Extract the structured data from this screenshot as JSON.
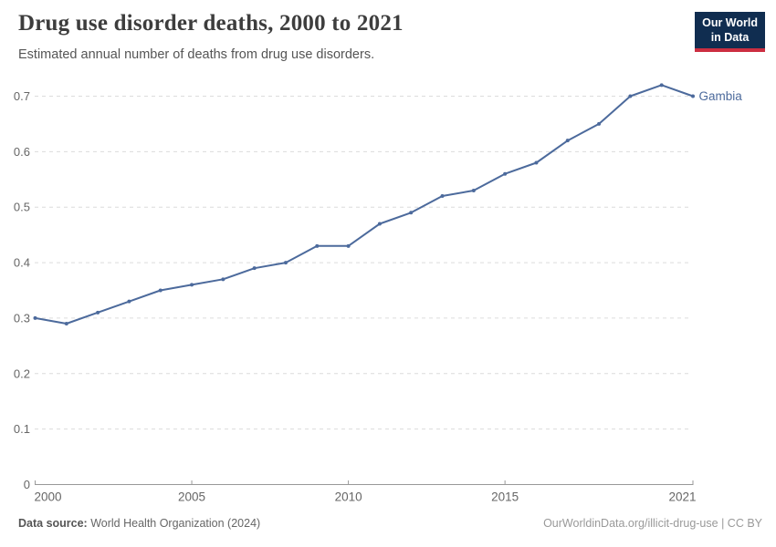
{
  "header": {
    "title": "Drug use disorder deaths, 2000 to 2021",
    "subtitle": "Estimated annual number of deaths from drug use disorders."
  },
  "logo": {
    "line1": "Our World",
    "line2": "in Data",
    "bg_color": "#102d50",
    "accent_color": "#cc2e41",
    "text_color": "#ffffff"
  },
  "footer": {
    "source_label": "Data source:",
    "source_value": "World Health Organization (2024)",
    "url": "OurWorldinData.org/illicit-drug-use",
    "separator": " | ",
    "license": "CC BY"
  },
  "chart_data": {
    "type": "line",
    "title": "Drug use disorder deaths, 2000 to 2021",
    "xlabel": "",
    "ylabel": "",
    "x": [
      2000,
      2001,
      2002,
      2003,
      2004,
      2005,
      2006,
      2007,
      2008,
      2009,
      2010,
      2011,
      2012,
      2013,
      2014,
      2015,
      2016,
      2017,
      2018,
      2019,
      2020,
      2021
    ],
    "series": [
      {
        "name": "Gambia",
        "color": "#4C6A9C",
        "values": [
          0.3,
          0.29,
          0.31,
          0.33,
          0.35,
          0.36,
          0.37,
          0.39,
          0.4,
          0.43,
          0.43,
          0.47,
          0.49,
          0.52,
          0.53,
          0.56,
          0.58,
          0.62,
          0.65,
          0.7,
          0.72,
          0.7
        ]
      }
    ],
    "ylim": [
      0,
      0.7
    ],
    "yticks": [
      0,
      0.1,
      0.2,
      0.3,
      0.4,
      0.5,
      0.6,
      0.7
    ],
    "xticks": [
      2000,
      2005,
      2010,
      2015,
      2021
    ],
    "grid": "horizontal-dashed",
    "legend": "inline-end-label",
    "colors": {
      "grid": "#dcdcdc",
      "axis": "#999999",
      "tick_label": "#666666"
    }
  }
}
